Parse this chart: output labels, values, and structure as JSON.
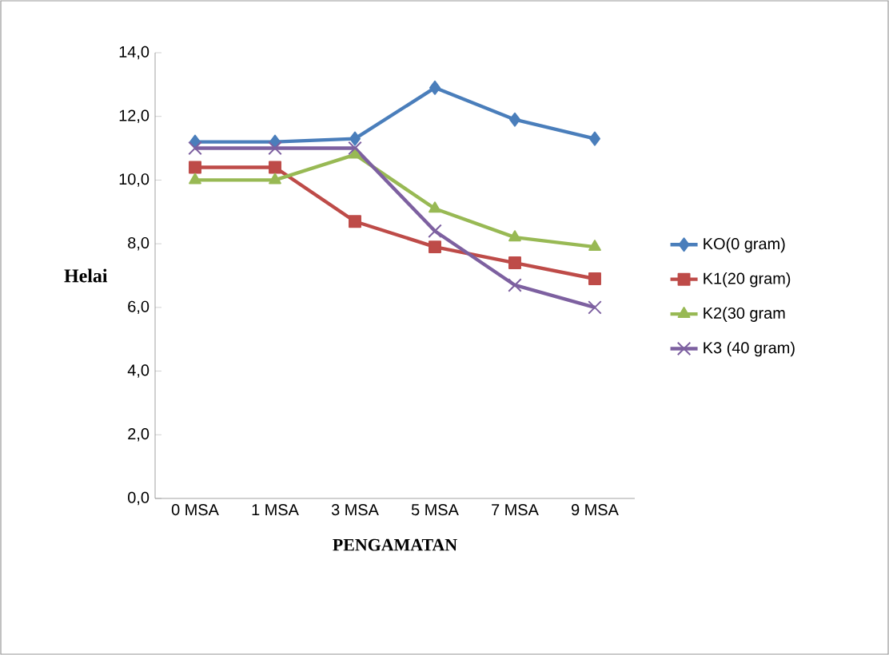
{
  "chart_data": {
    "type": "line",
    "xlabel": "PENGAMATAN",
    "ylabel": "Helai",
    "categories": [
      "0 MSA",
      "1 MSA",
      "3 MSA",
      "5 MSA",
      "7 MSA",
      "9 MSA"
    ],
    "ylim": [
      0,
      14
    ],
    "yticks": [
      {
        "value": 0,
        "label": "0,0"
      },
      {
        "value": 2,
        "label": "2,0"
      },
      {
        "value": 4,
        "label": "4,0"
      },
      {
        "value": 6,
        "label": "6,0"
      },
      {
        "value": 8,
        "label": "8,0"
      },
      {
        "value": 10,
        "label": "10,0"
      },
      {
        "value": 12,
        "label": "12,0"
      },
      {
        "value": 14,
        "label": "14,0"
      }
    ],
    "legend": "right",
    "grid": false,
    "series": [
      {
        "name": "KO(0 gram)",
        "color": "#4a7ebb",
        "marker": "diamond",
        "values": [
          11.2,
          11.2,
          11.3,
          12.9,
          11.9,
          11.3
        ]
      },
      {
        "name": "K1(20 gram)",
        "color": "#be4b48",
        "marker": "square",
        "values": [
          10.4,
          10.4,
          8.7,
          7.9,
          7.4,
          6.9
        ]
      },
      {
        "name": "K2(30 gram",
        "color": "#98b954",
        "marker": "triangle",
        "values": [
          10.0,
          10.0,
          10.8,
          9.1,
          8.2,
          7.9
        ]
      },
      {
        "name": "K3 (40 gram)",
        "color": "#7d60a0",
        "marker": "cross",
        "values": [
          11.0,
          11.0,
          11.0,
          8.4,
          6.7,
          6.0
        ]
      }
    ]
  }
}
